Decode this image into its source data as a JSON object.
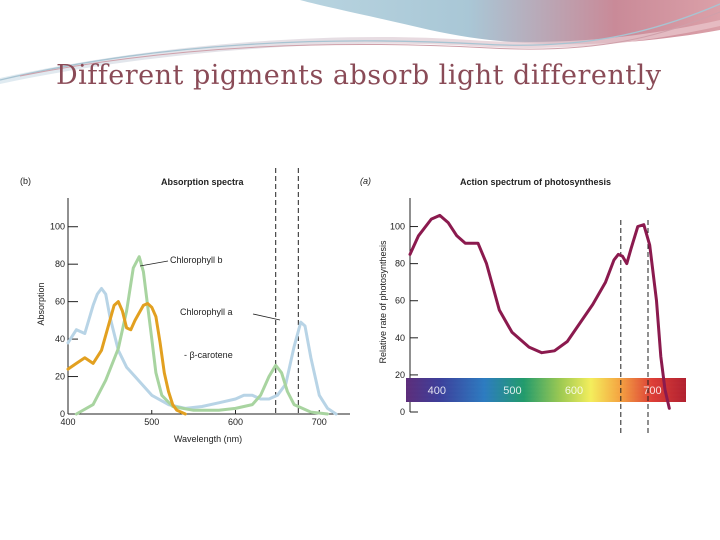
{
  "slide": {
    "title": "Different pigments absorb light differently"
  },
  "chart_data": [
    {
      "type": "line",
      "panel_label": "(b)",
      "title": "Absorption spectra",
      "xlabel": "Wavelength (nm)",
      "ylabel": "Absorption",
      "xlim": [
        400,
        720
      ],
      "ylim": [
        0,
        110
      ],
      "xticks": [
        400,
        500,
        600,
        700
      ],
      "yticks": [
        0,
        20,
        40,
        60,
        80,
        100
      ],
      "grid": false,
      "series": [
        {
          "name": "Chlorophyll b",
          "color": "#a8d4a0",
          "points": [
            [
              410,
              0
            ],
            [
              430,
              5
            ],
            [
              445,
              18
            ],
            [
              460,
              35
            ],
            [
              470,
              55
            ],
            [
              478,
              78
            ],
            [
              485,
              84
            ],
            [
              490,
              76
            ],
            [
              495,
              58
            ],
            [
              500,
              40
            ],
            [
              505,
              22
            ],
            [
              512,
              10
            ],
            [
              525,
              4
            ],
            [
              550,
              2
            ],
            [
              580,
              2
            ],
            [
              600,
              3
            ],
            [
              620,
              5
            ],
            [
              630,
              10
            ],
            [
              640,
              20
            ],
            [
              648,
              26
            ],
            [
              655,
              22
            ],
            [
              662,
              12
            ],
            [
              670,
              5
            ],
            [
              690,
              1
            ],
            [
              710,
              0
            ]
          ]
        },
        {
          "name": "Chlorophyll a",
          "color": "#b8d4e6",
          "points": [
            [
              400,
              38
            ],
            [
              410,
              45
            ],
            [
              420,
              43
            ],
            [
              430,
              58
            ],
            [
              435,
              64
            ],
            [
              440,
              67
            ],
            [
              445,
              64
            ],
            [
              450,
              52
            ],
            [
              460,
              34
            ],
            [
              470,
              25
            ],
            [
              480,
              20
            ],
            [
              500,
              10
            ],
            [
              520,
              5
            ],
            [
              540,
              3
            ],
            [
              560,
              4
            ],
            [
              580,
              6
            ],
            [
              600,
              8
            ],
            [
              610,
              10
            ],
            [
              620,
              10
            ],
            [
              630,
              8
            ],
            [
              640,
              8
            ],
            [
              650,
              10
            ],
            [
              660,
              16
            ],
            [
              670,
              36
            ],
            [
              678,
              49
            ],
            [
              683,
              47
            ],
            [
              690,
              30
            ],
            [
              700,
              10
            ],
            [
              710,
              3
            ],
            [
              720,
              0
            ]
          ]
        },
        {
          "name": "β-carotene",
          "color": "#e2a020",
          "points": [
            [
              400,
              24
            ],
            [
              410,
              27
            ],
            [
              420,
              30
            ],
            [
              430,
              27
            ],
            [
              440,
              34
            ],
            [
              450,
              50
            ],
            [
              455,
              58
            ],
            [
              460,
              60
            ],
            [
              465,
              55
            ],
            [
              470,
              46
            ],
            [
              475,
              45
            ],
            [
              480,
              50
            ],
            [
              490,
              58
            ],
            [
              495,
              59
            ],
            [
              500,
              57
            ],
            [
              505,
              52
            ],
            [
              510,
              38
            ],
            [
              515,
              22
            ],
            [
              520,
              12
            ],
            [
              525,
              5
            ],
            [
              530,
              2
            ],
            [
              540,
              0
            ]
          ]
        }
      ],
      "labels": {
        "chl_b": "Chlorophyll b",
        "chl_a": "Chlorophyll a",
        "carotene": "- β-carotene"
      },
      "reference_lines": [
        648,
        675
      ]
    },
    {
      "type": "line",
      "panel_label": "(a)",
      "title": "Action spectrum of photosynthesis",
      "xlabel": "",
      "ylabel": "Relative rate of photosynthesis",
      "xlim": [
        400,
        720
      ],
      "ylim": [
        0,
        110
      ],
      "yticks": [
        0,
        20,
        40,
        60,
        80,
        100
      ],
      "spectrum_labels": [
        "400",
        "500",
        "600",
        "700"
      ],
      "grid": false,
      "series": [
        {
          "color": "#8b1a4e",
          "points": [
            [
              400,
              85
            ],
            [
              410,
              95
            ],
            [
              425,
              104
            ],
            [
              435,
              106
            ],
            [
              445,
              102
            ],
            [
              455,
              95
            ],
            [
              465,
              91
            ],
            [
              480,
              91
            ],
            [
              490,
              80
            ],
            [
              505,
              55
            ],
            [
              520,
              43
            ],
            [
              540,
              35
            ],
            [
              555,
              32
            ],
            [
              570,
              33
            ],
            [
              585,
              38
            ],
            [
              600,
              48
            ],
            [
              615,
              58
            ],
            [
              630,
              70
            ],
            [
              640,
              82
            ],
            [
              645,
              85
            ],
            [
              650,
              84
            ],
            [
              655,
              80
            ],
            [
              660,
              88
            ],
            [
              668,
              100
            ],
            [
              675,
              101
            ],
            [
              682,
              90
            ],
            [
              690,
              60
            ],
            [
              695,
              30
            ],
            [
              700,
              12
            ],
            [
              705,
              2
            ]
          ]
        }
      ],
      "reference_lines": [
        648,
        680
      ]
    }
  ]
}
